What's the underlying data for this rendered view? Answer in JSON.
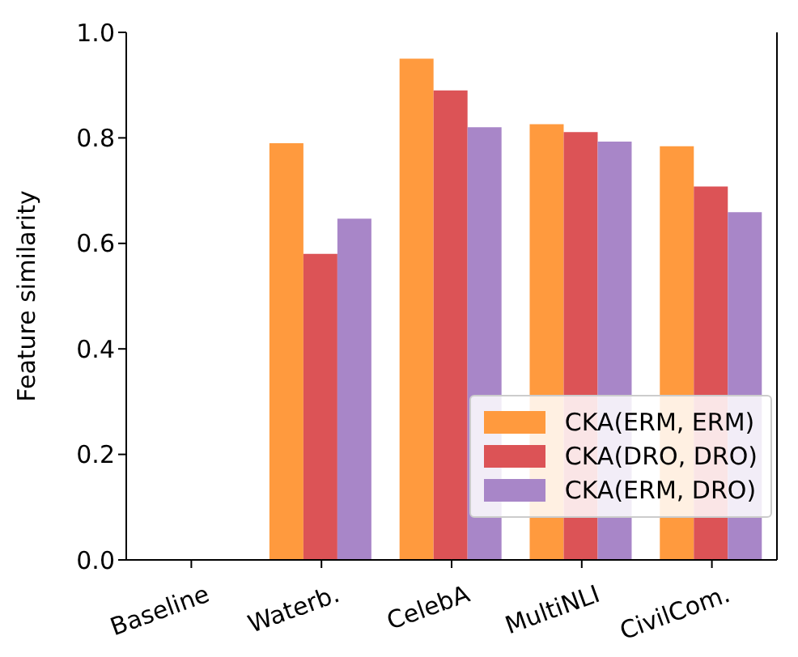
{
  "chart_data": {
    "type": "bar",
    "ylabel": "Feature similarity",
    "categories": [
      "Baseline",
      "Waterb.",
      "CelebA",
      "MultiNLI",
      "CivilCom."
    ],
    "series": [
      {
        "name": "CKA(ERM, ERM)",
        "color": "#ff9a3e",
        "values": [
          null,
          0.79,
          0.95,
          0.826,
          0.784
        ]
      },
      {
        "name": "CKA(DRO, DRO)",
        "color": "#dc5356",
        "values": [
          null,
          0.58,
          0.89,
          0.811,
          0.708
        ]
      },
      {
        "name": "CKA(ERM, DRO)",
        "color": "#a886c8",
        "values": [
          null,
          0.647,
          0.82,
          0.793,
          0.659
        ]
      }
    ],
    "ylim": [
      0,
      1.0
    ],
    "yticks": [
      {
        "value": 0,
        "label": "0.0"
      },
      {
        "value": 0.2,
        "label": "0.2"
      },
      {
        "value": 0.4,
        "label": "0.4"
      },
      {
        "value": 0.6,
        "label": "0.6"
      },
      {
        "value": 0.8,
        "label": "0.8"
      },
      {
        "value": 1.0,
        "label": "1.0"
      }
    ],
    "legend": "bottom right",
    "grid": false
  }
}
